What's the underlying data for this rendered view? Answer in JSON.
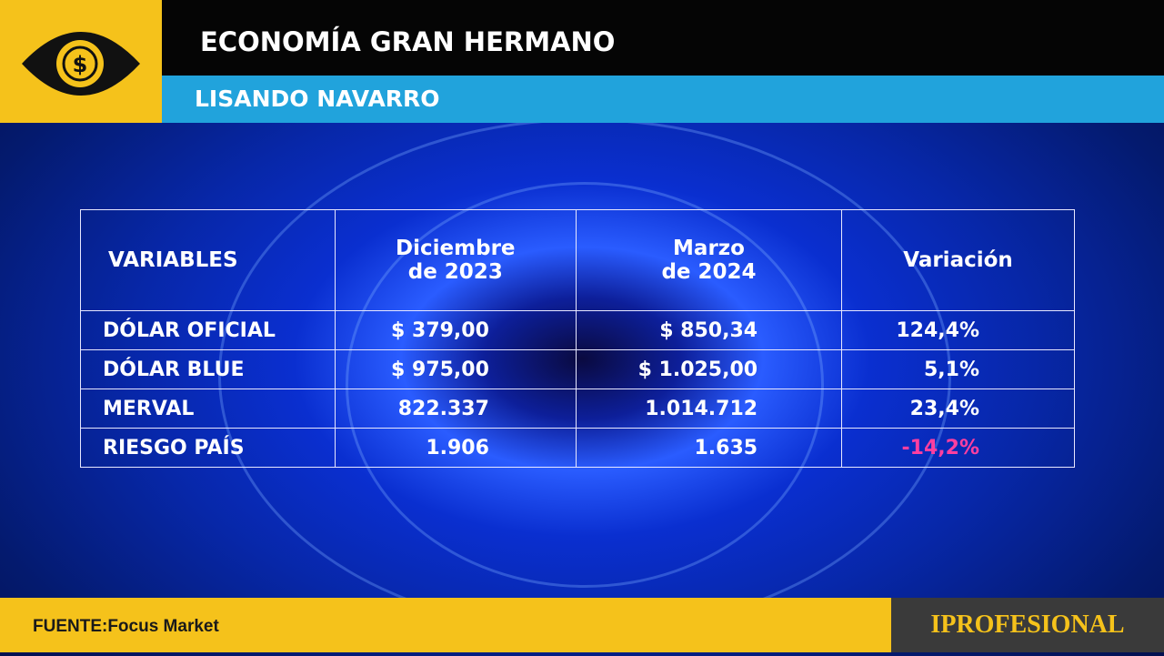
{
  "header": {
    "title": "ECONOMÍA GRAN HERMANO",
    "subtitle": "LISANDO NAVARRO"
  },
  "table": {
    "columns": [
      [
        "VARIABLES"
      ],
      [
        "Diciembre",
        "de 2023"
      ],
      [
        "Marzo",
        "de 2024"
      ],
      [
        "Variación"
      ]
    ],
    "rows": [
      [
        "DÓLAR OFICIAL",
        "$ 379,00",
        "$ 850,34",
        "124,4%"
      ],
      [
        "DÓLAR BLUE",
        "$ 975,00",
        "$ 1.025,00",
        "5,1%"
      ],
      [
        "MERVAL",
        "822.337",
        "1.014.712",
        "23,4%"
      ],
      [
        "RIESGO PAÍS",
        "1.906",
        "1.635",
        "-14,2%"
      ]
    ]
  },
  "footer": {
    "source": "FUENTE:Focus Market",
    "brand": "IPROFESIONAL"
  }
}
